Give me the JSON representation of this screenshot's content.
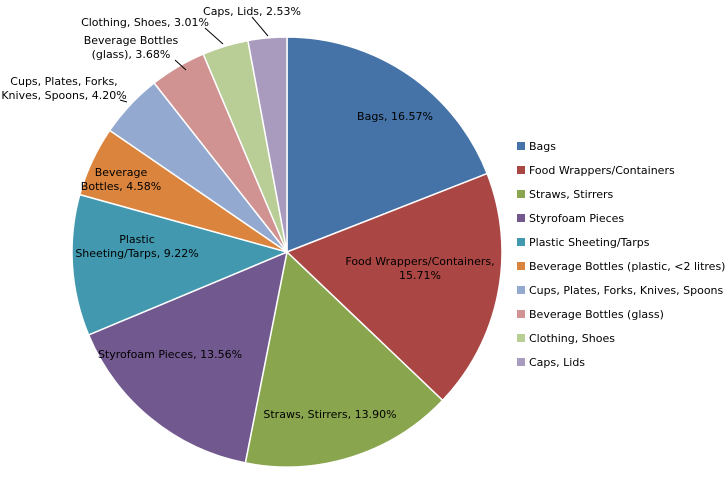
{
  "chart_data": {
    "type": "pie",
    "slices": [
      {
        "name": "Bags",
        "value": 16.57,
        "label": "Bags, 16.57%",
        "color": "#4572A7"
      },
      {
        "name": "Food Wrappers/Containers",
        "value": 15.71,
        "label": "Food Wrappers/Containers, 15.71%",
        "color": "#AA4643"
      },
      {
        "name": "Straws, Stirrers",
        "value": 13.9,
        "label": "Straws, Stirrers, 13.90%",
        "color": "#89A54E"
      },
      {
        "name": "Styrofoam Pieces",
        "value": 13.56,
        "label": "Styrofoam Pieces, 13.56%",
        "color": "#71588F"
      },
      {
        "name": "Plastic Sheeting/Tarps",
        "value": 9.22,
        "label": "Plastic Sheeting/Tarps, 9.22%",
        "color": "#4198AF"
      },
      {
        "name": "Beverage Bottles (plastic, <2 litres)",
        "value": 4.58,
        "label": "Beverage Bottles, 4.58%",
        "color": "#DB843D"
      },
      {
        "name": "Cups, Plates, Forks, Knives, Spoons",
        "value": 4.2,
        "label": "Cups, Plates, Forks, Knives, Spoons, 4.20%",
        "color": "#93A9CF"
      },
      {
        "name": "Beverage Bottles (glass)",
        "value": 3.68,
        "label": "Beverage Bottles (glass), 3.68%",
        "color": "#D19392"
      },
      {
        "name": "Clothing, Shoes",
        "value": 3.01,
        "label": "Clothing, Shoes, 3.01%",
        "color": "#B9CD96"
      },
      {
        "name": "Caps, Lids",
        "value": 2.53,
        "label": "Caps, Lids, 2.53%",
        "color": "#A99BBD"
      }
    ],
    "legend_position": "right"
  }
}
